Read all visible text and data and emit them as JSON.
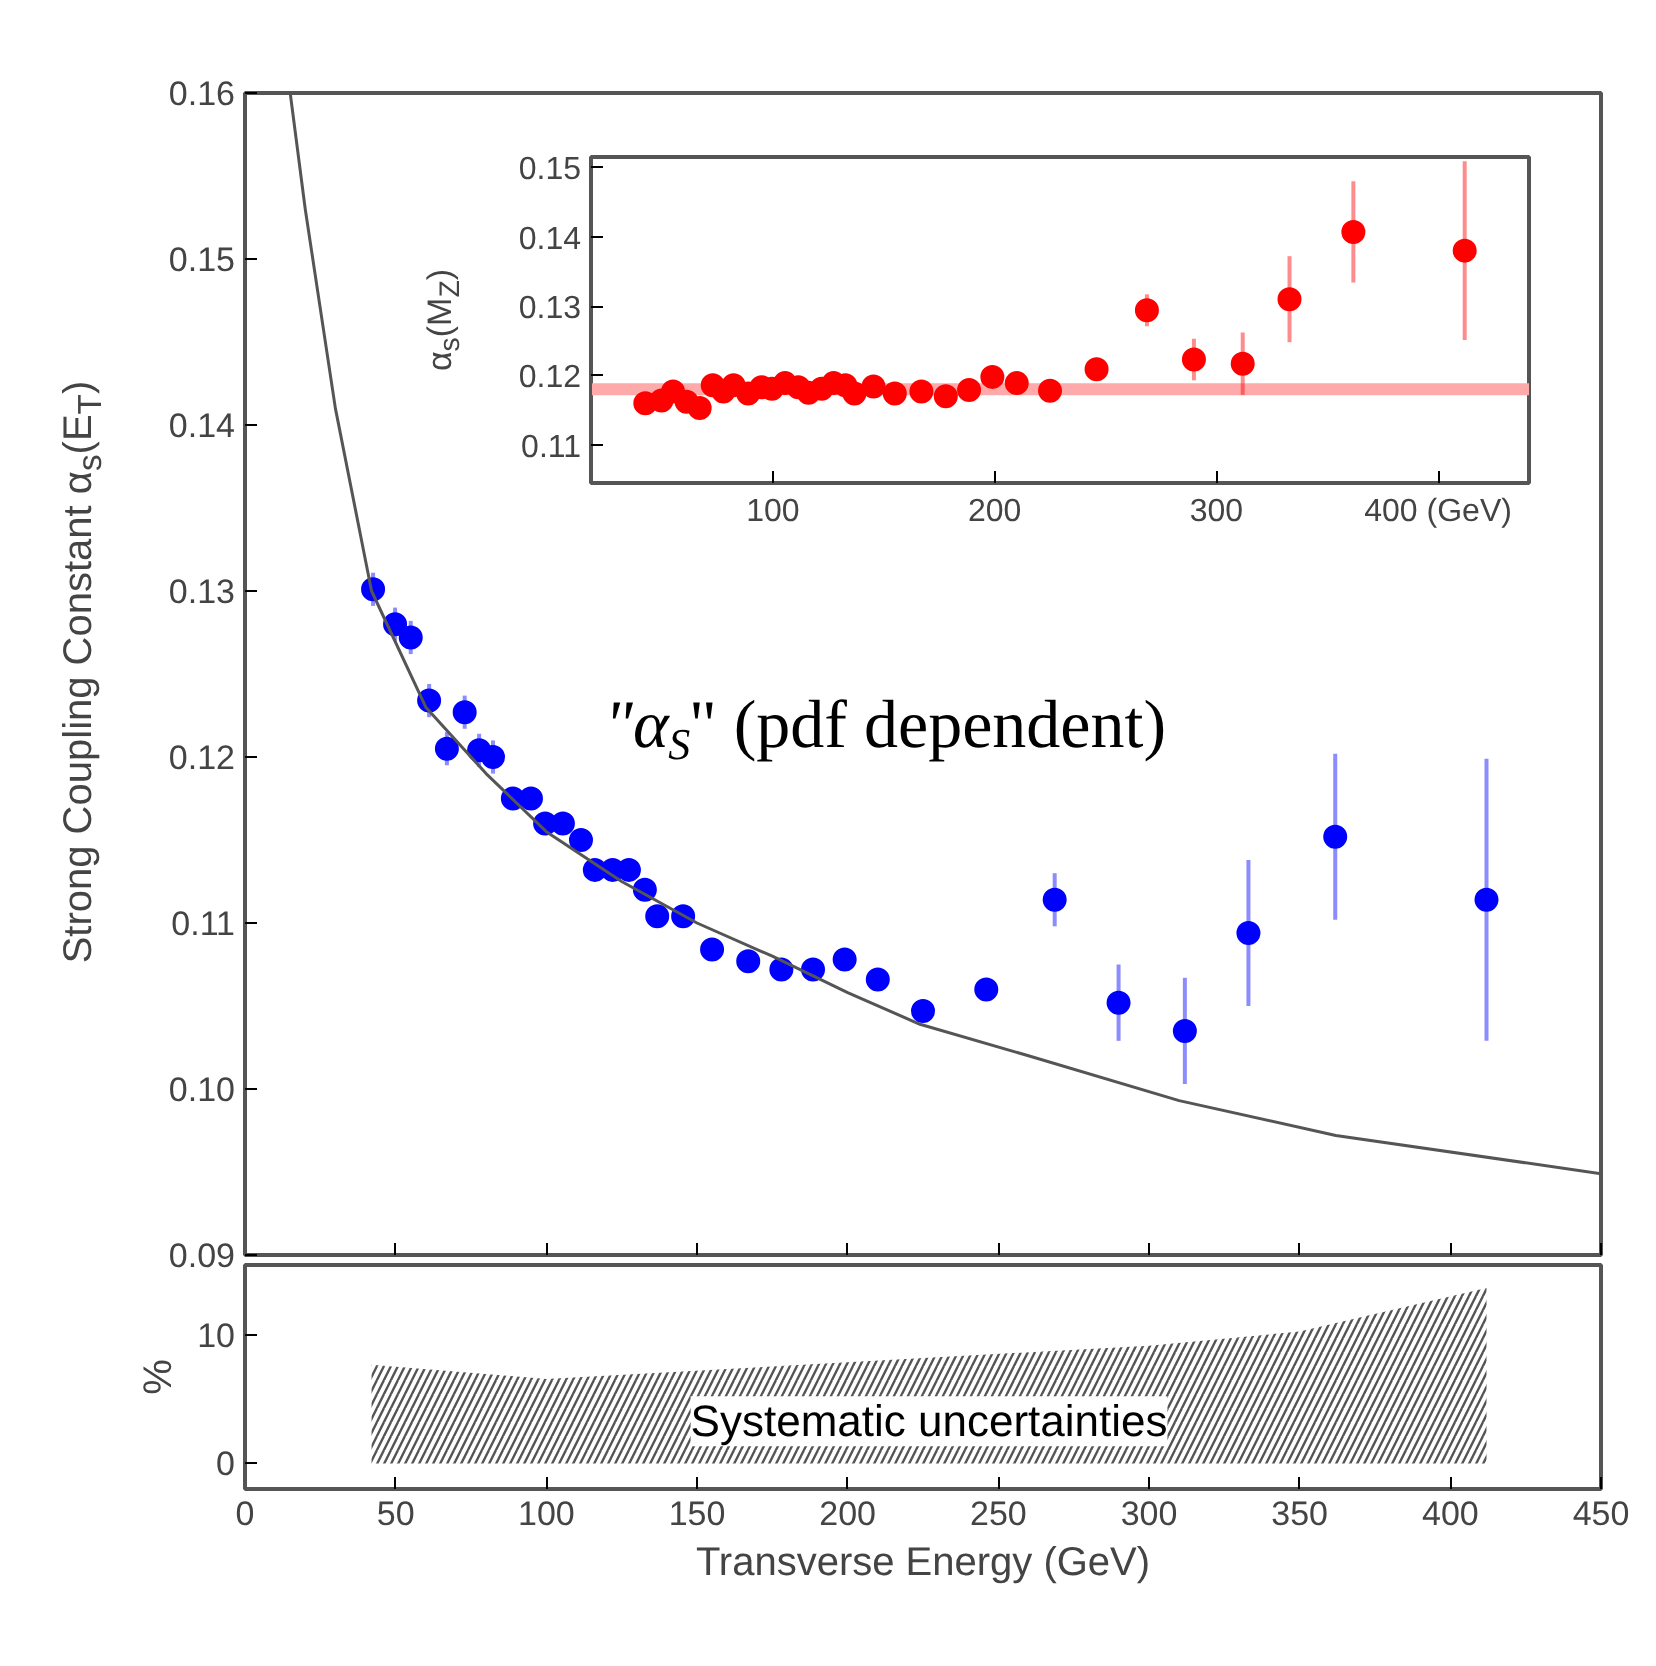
{
  "chart_data": [
    {
      "type": "scatter",
      "ylabel": "Strong Coupling Constant α$_{s}$(E$_{T}$)",
      "xlim": [
        0,
        450
      ],
      "ylim": [
        0.09,
        0.16
      ],
      "xticks": [
        0,
        50,
        100,
        150,
        200,
        250,
        300,
        350,
        400,
        450
      ],
      "yticks": [
        0.09,
        {
          "value": 0.1,
          "label": "0.10"
        },
        0.11,
        0.12,
        0.13,
        0.14,
        0.15,
        0.16
      ],
      "tick_labels": "y",
      "grid": false,
      "annotations": [
        "\"α$_{S}$\" (pdf dependent)"
      ],
      "x": [
        42.5,
        49.8,
        55,
        61.1,
        67,
        72.9,
        77.7,
        82.3,
        88.9,
        94.9,
        99.6,
        105.5,
        111.5,
        116.1,
        122,
        127.4,
        132.7,
        136.8,
        145.4,
        155,
        167,
        178,
        188.5,
        199,
        210,
        225,
        246,
        268.7,
        289.9,
        311.9,
        333,
        361.8,
        412
      ],
      "series": [
        {
          "color": "#0000ff",
          "marker": "circle",
          "values": [
            0.1301,
            0.128,
            0.1272,
            0.1234,
            0.1205,
            0.1227,
            0.1204,
            0.12,
            0.1175,
            0.1175,
            0.116,
            0.116,
            0.115,
            0.1132,
            0.1132,
            0.1132,
            0.112,
            0.1104,
            0.1104,
            0.1084,
            0.1077,
            0.1072,
            0.1072,
            0.1078,
            0.1066,
            0.1047,
            0.106,
            0.1114,
            0.1052,
            0.1035,
            0.1094,
            0.1152,
            0.1114
          ],
          "errors": [
            0.001,
            0.001,
            0.001,
            0.001,
            0.001,
            0.001,
            0.001,
            0.001,
            null,
            null,
            null,
            null,
            null,
            null,
            null,
            null,
            null,
            null,
            null,
            null,
            null,
            null,
            null,
            null,
            null,
            null,
            0.0006,
            0.0016,
            0.0023,
            0.0032,
            0.0044,
            0.005,
            0.0085
          ]
        },
        {
          "type": "line",
          "color": "#555555",
          "x": [
            15,
            20,
            30,
            42,
            60,
            80,
            100,
            125,
            150,
            175,
            200,
            224,
            260,
            310,
            362,
            450
          ],
          "values": [
            0.16,
            0.153,
            0.141,
            0.13,
            0.123,
            0.119,
            0.1155,
            0.1125,
            0.11,
            0.108,
            0.1058,
            0.1039,
            0.102,
            0.0993,
            0.0972,
            0.0949
          ]
        }
      ]
    },
    {
      "type": "scatter",
      "ylabel": "α$_{s}$(M$_{Z}$)",
      "xlim": [
        18,
        441
      ],
      "ylim": [
        0.1045,
        0.1515
      ],
      "xticks": [
        100,
        200,
        300,
        {
          "value": 400,
          "label": "400 (GeV)"
        }
      ],
      "yticks": [
        0.11,
        0.12,
        0.13,
        0.14,
        0.15
      ],
      "grid": false,
      "ref_lines": [
        {
          "axis": "y",
          "value": 0.118,
          "color": "#ffaaaa"
        }
      ],
      "x": [
        42.5,
        49.8,
        55,
        61.1,
        67,
        72.9,
        77.7,
        82.3,
        88.9,
        94.9,
        99.6,
        105.5,
        111.5,
        116.1,
        122,
        127.4,
        132.7,
        136.8,
        145.4,
        155,
        167,
        178,
        188.5,
        199,
        210,
        225,
        246,
        268.7,
        289.9,
        311.9,
        333,
        361.8,
        412
      ],
      "series": [
        {
          "color": "#ff0000",
          "marker": "circle",
          "values": [
            0.116,
            0.1164,
            0.1177,
            0.1162,
            0.1153,
            0.1186,
            0.1177,
            0.1186,
            0.1174,
            0.1183,
            0.1181,
            0.1189,
            0.1183,
            0.1175,
            0.1181,
            0.1189,
            0.1186,
            0.1174,
            0.1184,
            0.1174,
            0.1177,
            0.117,
            0.1179,
            0.1198,
            0.1189,
            0.1178,
            0.1209,
            0.1294,
            0.1223,
            0.1217,
            0.131,
            0.1407,
            0.138
          ],
          "errors": [
            null,
            null,
            null,
            null,
            null,
            null,
            null,
            null,
            null,
            null,
            null,
            null,
            null,
            null,
            null,
            null,
            null,
            null,
            null,
            null,
            null,
            null,
            null,
            null,
            null,
            null,
            0.0006,
            0.0023,
            0.003,
            0.0045,
            0.0062,
            0.0073,
            0.0129
          ]
        }
      ]
    },
    {
      "type": "area",
      "xlabel": "Transverse Energy (GeV)",
      "ylabel": "%",
      "xlim": [
        0,
        450
      ],
      "ylim": [
        -2,
        15.5
      ],
      "xticks": [
        0,
        50,
        100,
        150,
        200,
        250,
        300,
        350,
        400,
        450
      ],
      "yticks": [
        0,
        10
      ],
      "grid": false,
      "series": [
        {
          "name": "Systematic uncertainties",
          "color": "#555555",
          "x": [
            42,
            100,
            200,
            300,
            350,
            412
          ],
          "values": [
            7.7,
            6.6,
            7.9,
            9.2,
            10.3,
            13.7
          ]
        }
      ]
    }
  ]
}
